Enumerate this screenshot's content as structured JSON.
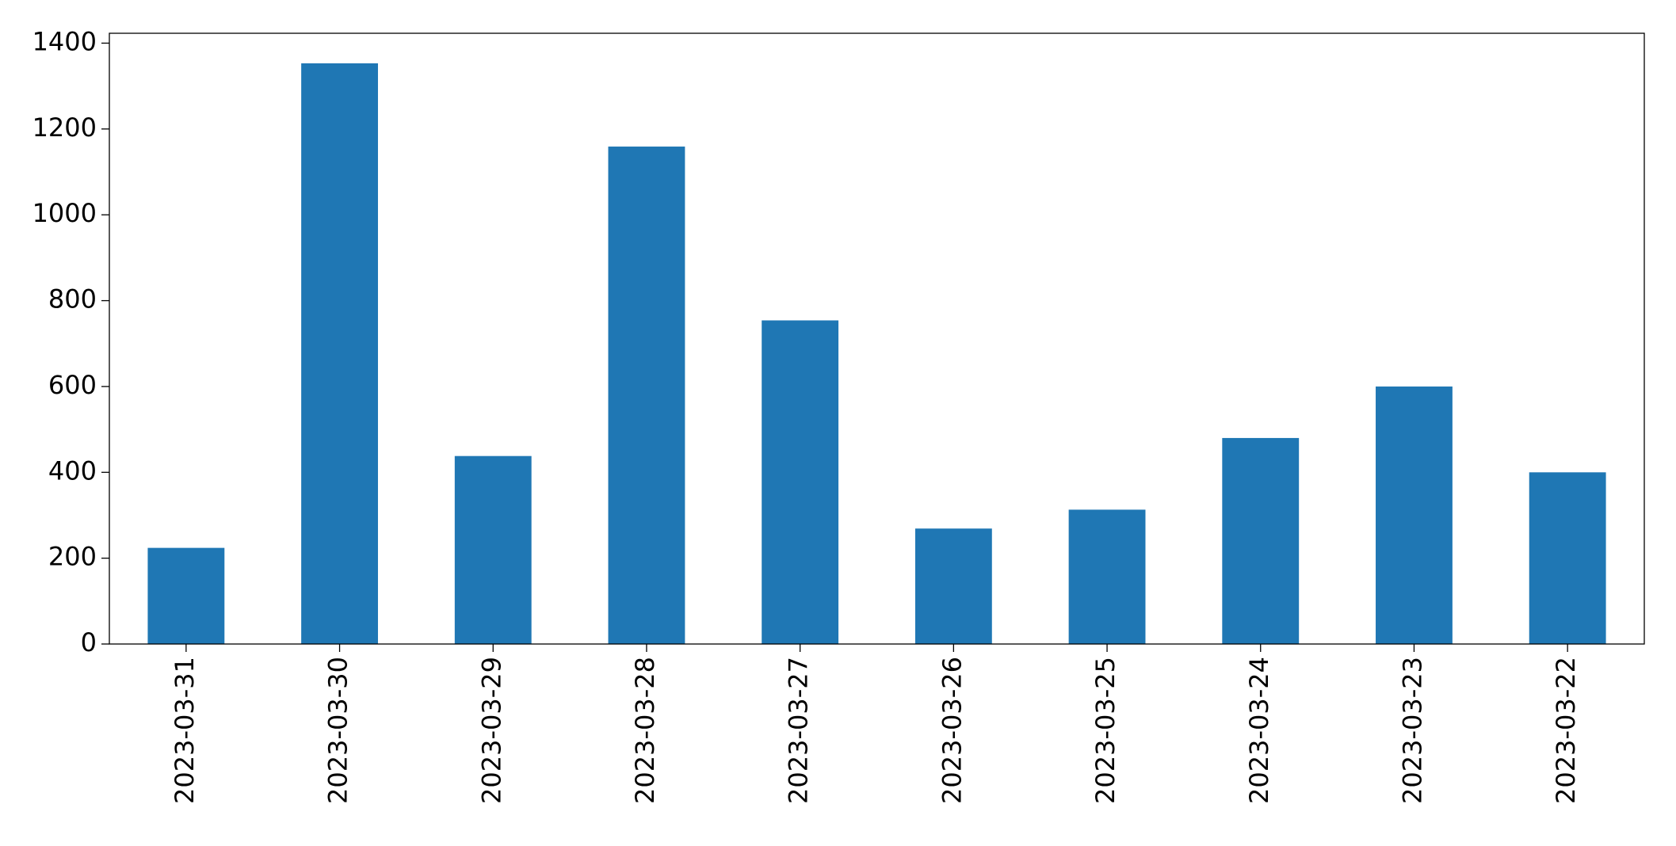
{
  "chart_data": {
    "type": "bar",
    "categories": [
      "2023-03-31",
      "2023-03-30",
      "2023-03-29",
      "2023-03-28",
      "2023-03-27",
      "2023-03-26",
      "2023-03-25",
      "2023-03-24",
      "2023-03-23",
      "2023-03-22"
    ],
    "values": [
      224,
      1353,
      438,
      1159,
      754,
      269,
      313,
      480,
      600,
      400
    ],
    "color": "#1f77b4",
    "ylim": [
      0,
      1423
    ],
    "yticks": [
      0,
      200,
      400,
      600,
      800,
      1000,
      1200,
      1400
    ],
    "grid": false
  }
}
